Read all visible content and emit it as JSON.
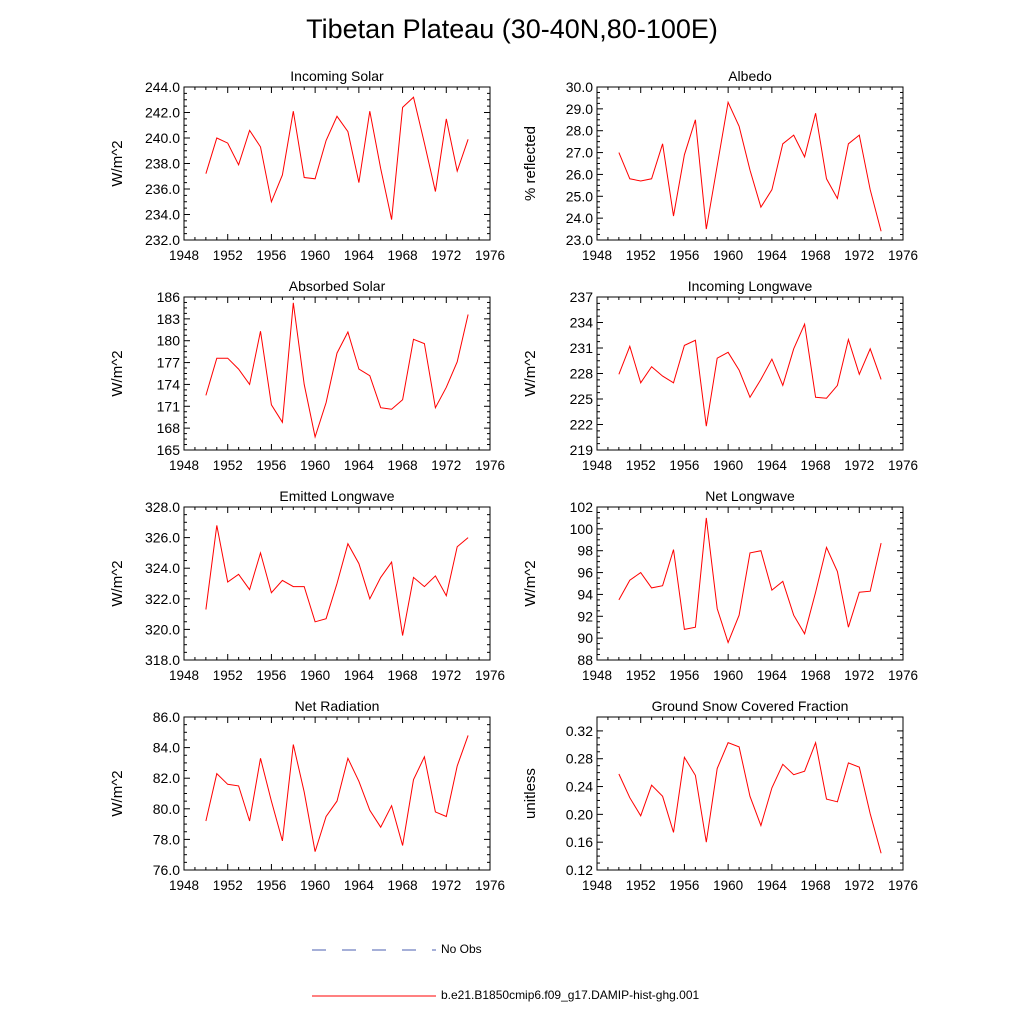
{
  "title": "Tibetan Plateau (30-40N,80-100E)",
  "legend": {
    "obs_label": "No Obs",
    "obs_color": "#4b5fb0",
    "model_label": "b.e21.B1850cmip6.f09_g17.DAMIP-hist-ghg.001",
    "model_color": "#ff0000"
  },
  "chart_data": [
    {
      "type": "line",
      "title": "Incoming Solar",
      "ylabel": "W/m^2",
      "xlim": [
        1948,
        1976
      ],
      "xticks": [
        1948,
        1952,
        1956,
        1960,
        1964,
        1968,
        1972,
        1976
      ],
      "ylim": [
        232,
        244
      ],
      "yticks": [
        232,
        234,
        236,
        238,
        240,
        242,
        244
      ],
      "ytick_decimals": 1,
      "x": [
        1950,
        1951,
        1952,
        1953,
        1954,
        1955,
        1956,
        1957,
        1958,
        1959,
        1960,
        1961,
        1962,
        1963,
        1964,
        1965,
        1966,
        1967,
        1968,
        1969,
        1970,
        1971,
        1972,
        1973,
        1974
      ],
      "series": [
        {
          "name": "b.e21.B1850cmip6.f09_g17.DAMIP-hist-ghg.001",
          "values": [
            237.2,
            240.0,
            239.6,
            237.9,
            240.6,
            239.3,
            235.0,
            237.1,
            242.1,
            236.9,
            236.8,
            239.8,
            241.7,
            240.5,
            236.5,
            242.1,
            237.6,
            233.6,
            242.4,
            243.2,
            239.6,
            235.8,
            241.5,
            237.4,
            239.9
          ]
        }
      ]
    },
    {
      "type": "line",
      "title": "Albedo",
      "ylabel": "% reflected",
      "xlim": [
        1948,
        1976
      ],
      "xticks": [
        1948,
        1952,
        1956,
        1960,
        1964,
        1968,
        1972,
        1976
      ],
      "ylim": [
        23,
        30
      ],
      "yticks": [
        23,
        24,
        25,
        26,
        27,
        28,
        29,
        30
      ],
      "ytick_decimals": 1,
      "x": [
        1950,
        1951,
        1952,
        1953,
        1954,
        1955,
        1956,
        1957,
        1958,
        1959,
        1960,
        1961,
        1962,
        1963,
        1964,
        1965,
        1966,
        1967,
        1968,
        1969,
        1970,
        1971,
        1972,
        1973,
        1974
      ],
      "series": [
        {
          "name": "b.e21.B1850cmip6.f09_g17.DAMIP-hist-ghg.001",
          "values": [
            27.0,
            25.8,
            25.7,
            25.8,
            27.4,
            24.1,
            26.9,
            28.5,
            23.5,
            26.4,
            29.3,
            28.2,
            26.2,
            24.5,
            25.3,
            27.4,
            27.8,
            26.8,
            28.8,
            25.8,
            24.9,
            27.4,
            27.8,
            25.3,
            23.4
          ]
        }
      ]
    },
    {
      "type": "line",
      "title": "Absorbed Solar",
      "ylabel": "W/m^2",
      "xlim": [
        1948,
        1976
      ],
      "xticks": [
        1948,
        1952,
        1956,
        1960,
        1964,
        1968,
        1972,
        1976
      ],
      "ylim": [
        165,
        186
      ],
      "yticks": [
        165,
        168,
        171,
        174,
        177,
        180,
        183,
        186
      ],
      "ytick_decimals": 0,
      "x": [
        1950,
        1951,
        1952,
        1953,
        1954,
        1955,
        1956,
        1957,
        1958,
        1959,
        1960,
        1961,
        1962,
        1963,
        1964,
        1965,
        1966,
        1967,
        1968,
        1969,
        1970,
        1971,
        1972,
        1973,
        1974
      ],
      "series": [
        {
          "name": "b.e21.B1850cmip6.f09_g17.DAMIP-hist-ghg.001",
          "values": [
            172.5,
            177.6,
            177.6,
            176.1,
            174.0,
            181.3,
            171.2,
            168.8,
            185.2,
            174.0,
            166.8,
            171.5,
            178.3,
            181.2,
            176.1,
            175.2,
            170.8,
            170.6,
            171.9,
            180.2,
            179.6,
            170.8,
            173.6,
            177.1,
            183.6
          ]
        }
      ]
    },
    {
      "type": "line",
      "title": "Incoming Longwave",
      "ylabel": "W/m^2",
      "xlim": [
        1948,
        1976
      ],
      "xticks": [
        1948,
        1952,
        1956,
        1960,
        1964,
        1968,
        1972,
        1976
      ],
      "ylim": [
        219,
        237
      ],
      "yticks": [
        219,
        222,
        225,
        228,
        231,
        234,
        237
      ],
      "ytick_decimals": 0,
      "x": [
        1950,
        1951,
        1952,
        1953,
        1954,
        1955,
        1956,
        1957,
        1958,
        1959,
        1960,
        1961,
        1962,
        1963,
        1964,
        1965,
        1966,
        1967,
        1968,
        1969,
        1970,
        1971,
        1972,
        1973,
        1974
      ],
      "series": [
        {
          "name": "b.e21.B1850cmip6.f09_g17.DAMIP-hist-ghg.001",
          "values": [
            227.9,
            231.2,
            226.9,
            228.8,
            227.7,
            226.9,
            231.3,
            231.9,
            221.8,
            229.8,
            230.5,
            228.4,
            225.2,
            227.3,
            229.7,
            226.6,
            230.9,
            233.8,
            225.2,
            225.1,
            226.6,
            232.0,
            227.9,
            230.9,
            227.3
          ]
        }
      ]
    },
    {
      "type": "line",
      "title": "Emitted Longwave",
      "ylabel": "W/m^2",
      "xlim": [
        1948,
        1976
      ],
      "xticks": [
        1948,
        1952,
        1956,
        1960,
        1964,
        1968,
        1972,
        1976
      ],
      "ylim": [
        318,
        328
      ],
      "yticks": [
        318,
        320,
        322,
        324,
        326,
        328
      ],
      "ytick_decimals": 1,
      "x": [
        1950,
        1951,
        1952,
        1953,
        1954,
        1955,
        1956,
        1957,
        1958,
        1959,
        1960,
        1961,
        1962,
        1963,
        1964,
        1965,
        1966,
        1967,
        1968,
        1969,
        1970,
        1971,
        1972,
        1973,
        1974
      ],
      "series": [
        {
          "name": "b.e21.B1850cmip6.f09_g17.DAMIP-hist-ghg.001",
          "values": [
            321.3,
            326.8,
            323.1,
            323.6,
            322.6,
            325.0,
            322.4,
            323.2,
            322.8,
            322.8,
            320.5,
            320.7,
            323.0,
            325.6,
            324.3,
            322.0,
            323.4,
            324.4,
            319.6,
            323.4,
            322.8,
            323.5,
            322.2,
            325.4,
            326.0
          ]
        }
      ]
    },
    {
      "type": "line",
      "title": "Net Longwave",
      "ylabel": "W/m^2",
      "xlim": [
        1948,
        1976
      ],
      "xticks": [
        1948,
        1952,
        1956,
        1960,
        1964,
        1968,
        1972,
        1976
      ],
      "ylim": [
        88,
        102
      ],
      "yticks": [
        88,
        90,
        92,
        94,
        96,
        98,
        100,
        102
      ],
      "ytick_decimals": 0,
      "x": [
        1950,
        1951,
        1952,
        1953,
        1954,
        1955,
        1956,
        1957,
        1958,
        1959,
        1960,
        1961,
        1962,
        1963,
        1964,
        1965,
        1966,
        1967,
        1968,
        1969,
        1970,
        1971,
        1972,
        1973,
        1974
      ],
      "series": [
        {
          "name": "b.e21.B1850cmip6.f09_g17.DAMIP-hist-ghg.001",
          "values": [
            93.5,
            95.3,
            96.0,
            94.6,
            94.8,
            98.1,
            90.8,
            91.0,
            101.0,
            92.7,
            89.6,
            92.1,
            97.8,
            98.0,
            94.4,
            95.2,
            92.1,
            90.4,
            94.2,
            98.3,
            96.1,
            91.0,
            94.2,
            94.3,
            98.7
          ]
        }
      ]
    },
    {
      "type": "line",
      "title": "Net Radiation",
      "ylabel": "W/m^2",
      "xlim": [
        1948,
        1976
      ],
      "xticks": [
        1948,
        1952,
        1956,
        1960,
        1964,
        1968,
        1972,
        1976
      ],
      "ylim": [
        76,
        86
      ],
      "yticks": [
        76,
        78,
        80,
        82,
        84,
        86
      ],
      "ytick_decimals": 1,
      "x": [
        1950,
        1951,
        1952,
        1953,
        1954,
        1955,
        1956,
        1957,
        1958,
        1959,
        1960,
        1961,
        1962,
        1963,
        1964,
        1965,
        1966,
        1967,
        1968,
        1969,
        1970,
        1971,
        1972,
        1973,
        1974
      ],
      "series": [
        {
          "name": "b.e21.B1850cmip6.f09_g17.DAMIP-hist-ghg.001",
          "values": [
            79.2,
            82.3,
            81.6,
            81.5,
            79.2,
            83.3,
            80.5,
            77.9,
            84.2,
            81.1,
            77.2,
            79.5,
            80.5,
            83.3,
            81.8,
            79.9,
            78.8,
            80.2,
            77.6,
            81.9,
            83.4,
            79.8,
            79.5,
            82.8,
            84.8
          ]
        }
      ]
    },
    {
      "type": "line",
      "title": "Ground Snow Covered Fraction",
      "ylabel": "unitless",
      "xlim": [
        1948,
        1976
      ],
      "xticks": [
        1948,
        1952,
        1956,
        1960,
        1964,
        1968,
        1972,
        1976
      ],
      "ylim": [
        0.12,
        0.34
      ],
      "yticks": [
        0.12,
        0.16,
        0.2,
        0.24,
        0.28,
        0.32
      ],
      "ytick_decimals": 2,
      "x": [
        1950,
        1951,
        1952,
        1953,
        1954,
        1955,
        1956,
        1957,
        1958,
        1959,
        1960,
        1961,
        1962,
        1963,
        1964,
        1965,
        1966,
        1967,
        1968,
        1969,
        1970,
        1971,
        1972,
        1973,
        1974
      ],
      "series": [
        {
          "name": "b.e21.B1850cmip6.f09_g17.DAMIP-hist-ghg.001",
          "values": [
            0.258,
            0.224,
            0.198,
            0.242,
            0.226,
            0.174,
            0.282,
            0.256,
            0.16,
            0.266,
            0.303,
            0.297,
            0.226,
            0.184,
            0.238,
            0.272,
            0.257,
            0.262,
            0.303,
            0.222,
            0.218,
            0.274,
            0.268,
            0.201,
            0.144
          ]
        }
      ]
    }
  ]
}
